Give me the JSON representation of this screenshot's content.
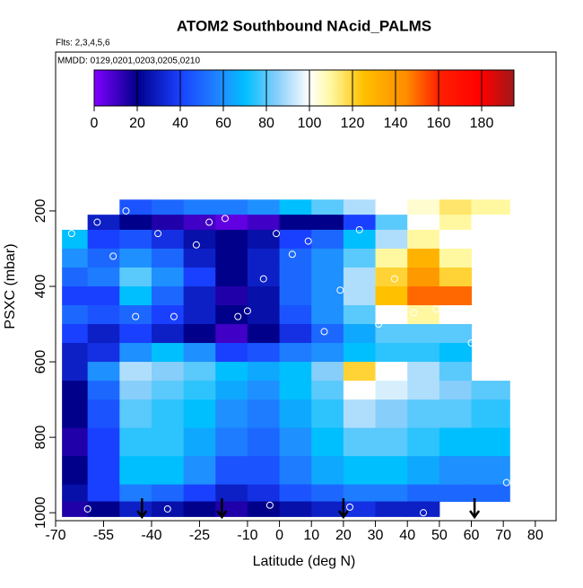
{
  "chart_data": {
    "type": "heatmap",
    "title": "ATOM2 Southbound NAcid_PALMS",
    "subtitle": "Flts: 2,3,4,5,6",
    "annotation": "MMDD: 0129,0201,0203,0205,0210",
    "xlabel": "Latitude (deg N)",
    "ylabel": "PSXC (mbar)",
    "xlim": [
      -70,
      86.5
    ],
    "xticks": [
      -70,
      -55,
      -40,
      -25,
      -10,
      0,
      10,
      20,
      30,
      40,
      50,
      60,
      70,
      80
    ],
    "ylim": [
      1021,
      -221
    ],
    "yticks": [
      200,
      400,
      600,
      800,
      1000
    ],
    "lat_bins": [
      -68,
      -60,
      -50,
      -40,
      -30,
      -20,
      -10,
      0,
      10,
      20,
      30,
      40,
      50,
      60,
      72
    ],
    "pressure_bins": [
      170,
      210,
      250,
      300,
      350,
      400,
      450,
      500,
      550,
      600,
      650,
      700,
      775,
      850,
      925,
      970,
      1010
    ],
    "z": [
      [
        null,
        null,
        45,
        50,
        55,
        55,
        60,
        70,
        80,
        90,
        100,
        105,
        115,
        110
      ],
      [
        100,
        30,
        20,
        15,
        10,
        5,
        10,
        20,
        20,
        40,
        80,
        100,
        110,
        100
      ],
      [
        70,
        40,
        45,
        35,
        25,
        20,
        25,
        40,
        50,
        70,
        90,
        110,
        100,
        null
      ],
      [
        60,
        50,
        60,
        50,
        30,
        20,
        30,
        50,
        60,
        80,
        110,
        130,
        110,
        null
      ],
      [
        50,
        55,
        80,
        60,
        40,
        20,
        30,
        50,
        60,
        90,
        120,
        140,
        120,
        null
      ],
      [
        40,
        40,
        70,
        50,
        30,
        15,
        25,
        50,
        60,
        90,
        125,
        150,
        150,
        null
      ],
      [
        50,
        45,
        50,
        40,
        30,
        20,
        25,
        45,
        60,
        80,
        100,
        110,
        100,
        null
      ],
      [
        40,
        30,
        40,
        30,
        20,
        10,
        20,
        35,
        50,
        65,
        80,
        80,
        80,
        null
      ],
      [
        30,
        35,
        60,
        70,
        60,
        40,
        45,
        55,
        60,
        70,
        75,
        75,
        70,
        null
      ],
      [
        30,
        60,
        90,
        85,
        80,
        70,
        65,
        70,
        85,
        120,
        100,
        90,
        80,
        null
      ],
      [
        20,
        50,
        85,
        80,
        75,
        65,
        60,
        70,
        80,
        100,
        95,
        90,
        85,
        80
      ],
      [
        20,
        45,
        80,
        75,
        70,
        60,
        55,
        65,
        75,
        90,
        85,
        80,
        80,
        75
      ],
      [
        15,
        40,
        75,
        75,
        65,
        55,
        50,
        60,
        70,
        80,
        80,
        75,
        70,
        70
      ],
      [
        20,
        40,
        70,
        70,
        60,
        45,
        45,
        55,
        65,
        70,
        70,
        65,
        60,
        60
      ],
      [
        25,
        40,
        55,
        50,
        40,
        30,
        35,
        45,
        50,
        55,
        55,
        50,
        50,
        50
      ],
      [
        15,
        20,
        30,
        25,
        20,
        15,
        20,
        25,
        30,
        35,
        30,
        30,
        null,
        null
      ]
    ],
    "points": {
      "lat": [
        -65,
        -57,
        -52,
        -48,
        -45,
        -38,
        -33,
        -26,
        -22,
        -17,
        -13,
        -10,
        -5,
        -1,
        4,
        9,
        14,
        19,
        25,
        31,
        36,
        42,
        49,
        55,
        60,
        -60,
        -35,
        -3,
        22,
        45,
        71
      ],
      "pressure": [
        260,
        230,
        320,
        200,
        480,
        260,
        480,
        290,
        230,
        220,
        480,
        465,
        380,
        260,
        315,
        280,
        520,
        410,
        250,
        500,
        380,
        470,
        460,
        280,
        550,
        990,
        990,
        980,
        985,
        1000,
        920
      ]
    },
    "arrows": [
      -43,
      -18,
      20,
      61
    ],
    "colorbar": {
      "lim": [
        0,
        195
      ],
      "ticks": [
        0,
        20,
        40,
        60,
        80,
        100,
        120,
        140,
        160,
        180
      ],
      "stops": [
        0,
        20,
        40,
        60,
        70,
        85,
        100,
        110,
        125,
        145,
        160,
        180,
        195
      ],
      "colors": [
        "#8000ff",
        "#00008b",
        "#1a40ff",
        "#1e90ff",
        "#00bfff",
        "#87cefa",
        "#ffffff",
        "#fff8a0",
        "#ffc000",
        "#ff8c00",
        "#ff2000",
        "#ff0000",
        "#a01818"
      ]
    },
    "point_color": "#ffffff",
    "arrow_color": "#000000"
  }
}
